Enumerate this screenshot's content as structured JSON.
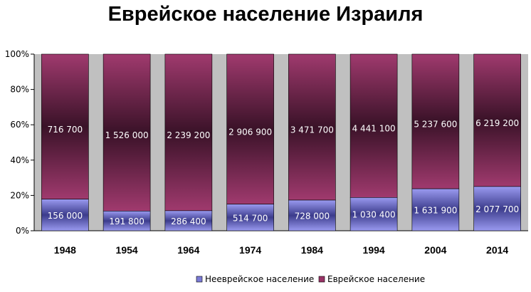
{
  "chart_data": {
    "type": "bar",
    "stacked": "percent",
    "title": "Еврейское население Израиля",
    "categories": [
      "1948",
      "1954",
      "1964",
      "1974",
      "1984",
      "1994",
      "2004",
      "2014"
    ],
    "series": [
      {
        "name": "Нееврейское население",
        "values": [
          156000,
          191800,
          286400,
          514700,
          728000,
          1030400,
          1631900,
          2077700
        ],
        "labels": [
          "156 000",
          "191 800",
          "286 400",
          "514 700",
          "728 000",
          "1 030 400",
          "1 631 900",
          "2 077 700"
        ],
        "color": "#7b7bd6"
      },
      {
        "name": "Еврейское население",
        "values": [
          716700,
          1526000,
          2239200,
          2906900,
          3471700,
          4441100,
          5237600,
          6219200
        ],
        "labels": [
          "716 700",
          "1 526 000",
          "2 239 200",
          "2 906 900",
          "3 471 700",
          "4 441 100",
          "5 237 600",
          "6 219 200"
        ],
        "color": "#993366"
      }
    ],
    "y_ticks": [
      "0%",
      "20%",
      "40%",
      "60%",
      "80%",
      "100%"
    ],
    "ylim": [
      0,
      100
    ],
    "plot_background": "#c0c0c0",
    "grid": false,
    "legend_position": "bottom-right"
  }
}
